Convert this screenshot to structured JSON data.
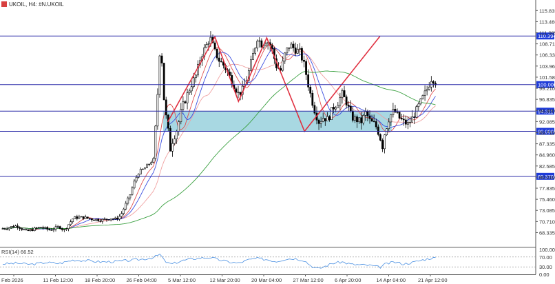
{
  "chart_data": {
    "type": "candlestick",
    "title": "UKOIL, H4: #N.UKOIL",
    "title_icon": "instrument-badge-icon",
    "price_axis": {
      "ylim": [
        65.6,
        117.5
      ],
      "ticks": [
        "115.835",
        "113.460",
        "111.085",
        "108.710",
        "106.335",
        "103.960",
        "101.585",
        "99.210",
        "96.835",
        "94.460",
        "92.085",
        "89.710",
        "87.335",
        "84.960",
        "82.585",
        "80.210",
        "77.835",
        "75.460",
        "73.085",
        "70.710",
        "68.335"
      ]
    },
    "x_axis": {
      "labels": [
        "Feb 2026",
        "11 Feb 12:00",
        "18 Feb 20:00",
        "26 Feb 04:00",
        "5 Mar 12:00",
        "12 Mar 20:00",
        "20 Mar 04:00",
        "27 Mar 12:00",
        "6 Apr 20:00",
        "14 Apr 04:00",
        "21 Apr 12:00"
      ]
    },
    "horizontal_levels": [
      {
        "label": "110.394",
        "value": 110.394
      },
      {
        "label": "100.000",
        "value": 100.0
      },
      {
        "label": "94.311",
        "value": 94.311
      },
      {
        "label": "90.000",
        "value": 90.0
      },
      {
        "label": "80.370",
        "value": 80.37
      }
    ],
    "zone": {
      "from": 90.0,
      "to": 94.311,
      "color": "#a8d8e2"
    },
    "price_series": {
      "name": "UKOIL",
      "x_range": [
        0,
        100
      ],
      "points": [
        [
          0,
          69.2
        ],
        [
          3,
          69.8
        ],
        [
          5,
          68.6
        ],
        [
          8,
          69.5
        ],
        [
          10,
          68.9
        ],
        [
          12,
          69.6
        ],
        [
          13,
          68.8
        ],
        [
          15,
          71.5
        ],
        [
          17,
          71.6
        ],
        [
          19,
          71.2
        ],
        [
          21,
          71.0
        ],
        [
          23,
          71.4
        ],
        [
          24,
          71.2
        ],
        [
          25,
          72.0
        ],
        [
          26,
          74.2
        ],
        [
          27,
          76.5
        ],
        [
          28,
          79.5
        ],
        [
          29,
          81.5
        ],
        [
          30,
          82.0
        ],
        [
          31,
          83.0
        ],
        [
          32,
          84.0
        ],
        [
          33,
          100.5
        ],
        [
          33.5,
          111.0
        ],
        [
          34,
          99.0
        ],
        [
          34.5,
          94.0
        ],
        [
          35,
          91.0
        ],
        [
          35.5,
          86.0
        ],
        [
          36,
          88.0
        ],
        [
          37,
          90.5
        ],
        [
          38,
          95.0
        ],
        [
          39,
          97.5
        ],
        [
          40,
          100.0
        ],
        [
          41,
          102.0
        ],
        [
          42,
          106.0
        ],
        [
          43,
          108.0
        ],
        [
          44,
          110.0
        ],
        [
          45,
          107.0
        ],
        [
          46,
          105.0
        ],
        [
          47,
          104.0
        ],
        [
          48,
          102.0
        ],
        [
          49,
          100.0
        ],
        [
          50,
          98.0
        ],
        [
          51,
          99.0
        ],
        [
          52,
          102.0
        ],
        [
          53,
          106.0
        ],
        [
          54,
          110.0
        ],
        [
          55,
          108.5
        ],
        [
          56,
          109.5
        ],
        [
          57,
          108.0
        ],
        [
          58,
          104.0
        ],
        [
          59,
          103.0
        ],
        [
          60,
          107.0
        ],
        [
          61,
          108.5
        ],
        [
          62,
          107.5
        ],
        [
          63,
          107.0
        ],
        [
          64,
          104.0
        ],
        [
          65,
          99.0
        ],
        [
          66,
          95.0
        ],
        [
          67,
          92.0
        ],
        [
          68,
          93.0
        ],
        [
          69,
          92.5
        ],
        [
          70,
          95.0
        ],
        [
          71,
          96.0
        ],
        [
          72,
          98.0
        ],
        [
          73,
          96.0
        ],
        [
          74,
          93.0
        ],
        [
          75,
          92.5
        ],
        [
          76,
          92.0
        ],
        [
          77,
          94.0
        ],
        [
          78,
          92.0
        ],
        [
          79,
          91.5
        ],
        [
          80,
          89.0
        ],
        [
          80.5,
          86.5
        ],
        [
          81,
          89.5
        ],
        [
          82,
          93.0
        ],
        [
          83,
          94.5
        ],
        [
          84,
          93.0
        ],
        [
          85,
          92.0
        ],
        [
          86,
          91.5
        ],
        [
          87,
          93.0
        ],
        [
          88,
          95.0
        ],
        [
          89,
          97.0
        ],
        [
          90,
          99.0
        ],
        [
          91,
          101.5
        ],
        [
          92,
          100.3
        ]
      ]
    },
    "indicators": [
      {
        "name": "MA-fast",
        "color": "#e05050"
      },
      {
        "name": "MA-slow",
        "color": "#f0a0a0"
      },
      {
        "name": "MA-blue",
        "color": "#3a4ee0"
      },
      {
        "name": "MA-long",
        "color": "#3aa040"
      }
    ],
    "pattern_lines": {
      "color": "#e03040",
      "points": [
        [
          35,
          92.0
        ],
        [
          45,
          110.2
        ],
        [
          50,
          96.4
        ],
        [
          56,
          110.0
        ],
        [
          64,
          90.0
        ],
        [
          80,
          110.3
        ]
      ]
    },
    "rsi": {
      "label": "RSI(14) 66.52",
      "ylim": [
        0,
        100
      ],
      "ticks": [
        "100.00",
        "70.00",
        "30.00",
        "0.00"
      ],
      "levels": [
        70,
        30
      ],
      "values": [
        [
          0,
          42
        ],
        [
          3,
          45
        ],
        [
          6,
          40
        ],
        [
          9,
          48
        ],
        [
          12,
          44
        ],
        [
          15,
          58
        ],
        [
          18,
          55
        ],
        [
          21,
          50
        ],
        [
          24,
          52
        ],
        [
          27,
          56
        ],
        [
          30,
          62
        ],
        [
          32,
          68
        ],
        [
          33.5,
          82
        ],
        [
          34,
          60
        ],
        [
          35,
          45
        ],
        [
          36,
          42
        ],
        [
          38,
          55
        ],
        [
          40,
          62
        ],
        [
          42,
          66
        ],
        [
          44,
          68
        ],
        [
          46,
          58
        ],
        [
          48,
          50
        ],
        [
          50,
          45
        ],
        [
          52,
          58
        ],
        [
          54,
          64
        ],
        [
          56,
          60
        ],
        [
          58,
          52
        ],
        [
          60,
          62
        ],
        [
          62,
          64
        ],
        [
          64,
          56
        ],
        [
          65,
          40
        ],
        [
          66,
          28
        ],
        [
          67,
          22
        ],
        [
          68,
          30
        ],
        [
          70,
          45
        ],
        [
          72,
          50
        ],
        [
          74,
          40
        ],
        [
          76,
          38
        ],
        [
          78,
          36
        ],
        [
          80,
          28
        ],
        [
          81,
          40
        ],
        [
          83,
          50
        ],
        [
          85,
          42
        ],
        [
          87,
          48
        ],
        [
          89,
          58
        ],
        [
          91,
          66
        ],
        [
          92,
          66.52
        ]
      ]
    }
  }
}
